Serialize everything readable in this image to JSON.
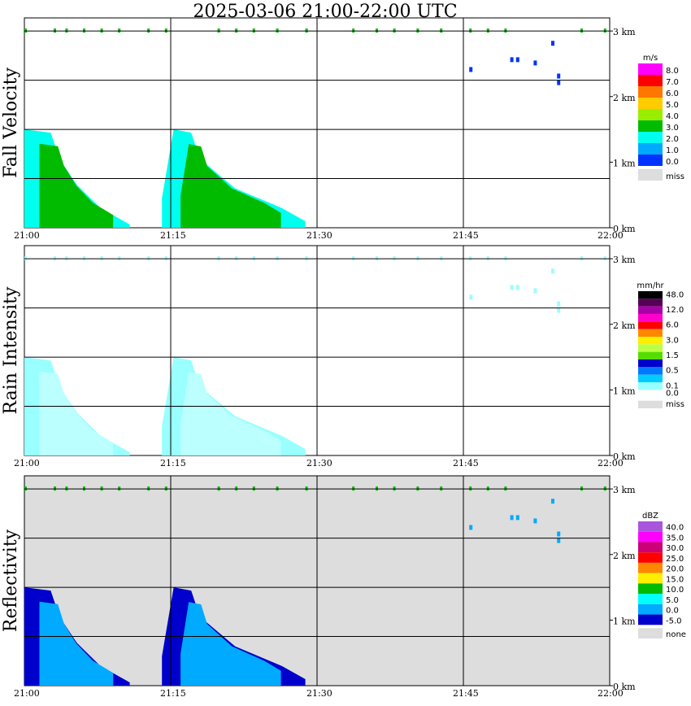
{
  "title": "2025-03-06  21:00-22:00 UTC",
  "chart_data": [
    {
      "type": "heatmap",
      "ylabel": "Fall Velocity",
      "unit": "m/s",
      "x_ticks": [
        "21:00",
        "21:15",
        "21:30",
        "21:45",
        "22:00"
      ],
      "y_ticks": [
        "0 km",
        "1 km",
        "2 km",
        "3 km"
      ],
      "background": "#ffffff",
      "legend": [
        {
          "label": "8.0",
          "color": "#ff00ff"
        },
        {
          "label": "7.0",
          "color": "#ff0000"
        },
        {
          "label": "6.0",
          "color": "#ff7700"
        },
        {
          "label": "5.0",
          "color": "#ffcc00"
        },
        {
          "label": "4.0",
          "color": "#99ee00"
        },
        {
          "label": "3.0",
          "color": "#00bb00"
        },
        {
          "label": "2.0",
          "color": "#00ffee"
        },
        {
          "label": "1.0",
          "color": "#00aaff"
        },
        {
          "label": "0.0",
          "color": "#0033ff"
        },
        {
          "label": "miss",
          "color": "#dddddd"
        }
      ]
    },
    {
      "type": "heatmap",
      "ylabel": "Rain Intensity",
      "unit": "mm/hr",
      "x_ticks": [
        "21:00",
        "21:15",
        "21:30",
        "21:45",
        "22:00"
      ],
      "y_ticks": [
        "0 km",
        "1 km",
        "2 km",
        "3 km"
      ],
      "background": "#ffffff",
      "legend": [
        {
          "label": "48.0",
          "color": "#000000"
        },
        {
          "label": "",
          "color": "#550055"
        },
        {
          "label": "12.0",
          "color": "#aa00aa"
        },
        {
          "label": "",
          "color": "#ff00cc"
        },
        {
          "label": "6.0",
          "color": "#ff0000"
        },
        {
          "label": "",
          "color": "#ff8800"
        },
        {
          "label": "3.0",
          "color": "#ffee00"
        },
        {
          "label": "",
          "color": "#bbff44"
        },
        {
          "label": "1.5",
          "color": "#55dd00"
        },
        {
          "label": "",
          "color": "#0000cc"
        },
        {
          "label": "0.5",
          "color": "#0077ff"
        },
        {
          "label": "",
          "color": "#00ccff"
        },
        {
          "label": "0.1",
          "color": "#99ffff"
        },
        {
          "label": "0.0",
          "color": "#ffffff"
        },
        {
          "label": "miss",
          "color": "#dddddd"
        }
      ]
    },
    {
      "type": "heatmap",
      "ylabel": "Reflectivity",
      "unit": "dBZ",
      "x_ticks": [
        "21:00",
        "21:15",
        "21:30",
        "21:45",
        "22:00"
      ],
      "y_ticks": [
        "0 km",
        "1 km",
        "2 km",
        "3 km"
      ],
      "background": "#dddddd",
      "legend": [
        {
          "label": "40.0",
          "color": "#aa55dd"
        },
        {
          "label": "35.0",
          "color": "#ff00ff"
        },
        {
          "label": "30.0",
          "color": "#cc0077"
        },
        {
          "label": "25.0",
          "color": "#ff0000"
        },
        {
          "label": "20.0",
          "color": "#ff8800"
        },
        {
          "label": "15.0",
          "color": "#ffee00"
        },
        {
          "label": "10.0",
          "color": "#00bb00"
        },
        {
          "label": "5.0",
          "color": "#00ffff"
        },
        {
          "label": "0.0",
          "color": "#00aaff"
        },
        {
          "label": "-5.0",
          "color": "#0000cc"
        },
        {
          "label": "none",
          "color": "#dddddd"
        }
      ]
    }
  ]
}
